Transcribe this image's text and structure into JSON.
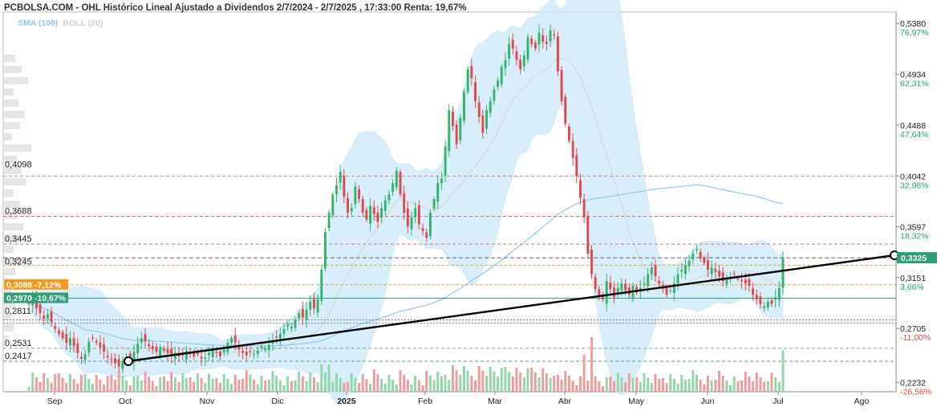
{
  "title": "PCBOLSA.COM - OHL Histórico Lineal Ajustado a Dividendos 2/7/2024 - 2/7/2025 , 17:33:00 Renta: 19,67%",
  "indicators": {
    "sma": "SMA (100)",
    "boll": "BOLL (20)"
  },
  "colors": {
    "up": "#31b36b",
    "down": "#e0474c",
    "band": "#cde9fa",
    "sma": "#8ec9ee",
    "boll_mid": "#d4d4d4",
    "orange_badge": "#f39b1e",
    "green_badge": "#2e9e77",
    "resistance_line": "#d45a5a",
    "trend_line": "#000000"
  },
  "chart_data": {
    "type": "candlestick",
    "title": "PCBOLSA.COM - OHL Histórico Lineal Ajustado a Dividendos 2/7/2024 - 2/7/2025 , 17:33:00 Renta: 19,67%",
    "x_period": [
      "2/7/2024",
      "2/7/2025"
    ],
    "x_tick_labels": [
      "Sep",
      "Oct",
      "Nov",
      "Dic",
      "2025",
      "Feb",
      "Mar",
      "Abr",
      "May",
      "Jun",
      "Jul",
      "Ago"
    ],
    "y_range": [
      0.215,
      0.548
    ],
    "right_axis": [
      {
        "price": "0,5380",
        "pct": "76,97%"
      },
      {
        "price": "0,4934",
        "pct": "62,31%"
      },
      {
        "price": "0,4488",
        "pct": "47,64%"
      },
      {
        "price": "0,4042",
        "pct": "32,98%"
      },
      {
        "price": "0,3597",
        "pct": "18,32%"
      },
      {
        "price": "0,3151",
        "pct": "3,66%"
      },
      {
        "price": "0,2705",
        "pct": "-11,00%"
      },
      {
        "price": "0,2232",
        "pct": "-26,56%"
      }
    ],
    "left_levels": [
      "0,4098",
      "0,3688",
      "0,3445",
      "0,3245",
      "0,2811",
      "0,2531",
      "0,2417"
    ],
    "badges": [
      {
        "text": "0,3088 -7,12%",
        "value": 0.3088,
        "color": "#f39b1e"
      },
      {
        "text": "0,2970 -10,67%",
        "value": 0.297,
        "color": "#2e9e77"
      }
    ],
    "last_price": "0,3325",
    "series": [
      {
        "name": "SMA (100)"
      },
      {
        "name": "BOLL (20)"
      }
    ],
    "close_values": [
      0.292,
      0.296,
      0.288,
      0.284,
      0.279,
      0.283,
      0.276,
      0.27,
      0.266,
      0.262,
      0.258,
      0.262,
      0.255,
      0.249,
      0.244,
      0.248,
      0.259,
      0.262,
      0.258,
      0.254,
      0.25,
      0.245,
      0.243,
      0.24,
      0.237,
      0.242,
      0.246,
      0.244,
      0.25,
      0.257,
      0.262,
      0.259,
      0.255,
      0.252,
      0.25,
      0.254,
      0.251,
      0.249,
      0.246,
      0.249,
      0.246,
      0.247,
      0.251,
      0.248,
      0.246,
      0.248,
      0.244,
      0.245,
      0.249,
      0.251,
      0.249,
      0.246,
      0.252,
      0.258,
      0.262,
      0.258,
      0.252,
      0.249,
      0.247,
      0.25,
      0.248,
      0.251,
      0.255,
      0.253,
      0.256,
      0.26,
      0.263,
      0.266,
      0.27,
      0.274,
      0.272,
      0.278,
      0.284,
      0.28,
      0.287,
      0.294,
      0.288,
      0.296,
      0.322,
      0.355,
      0.372,
      0.388,
      0.396,
      0.408,
      0.386,
      0.372,
      0.376,
      0.395,
      0.384,
      0.372,
      0.366,
      0.378,
      0.371,
      0.364,
      0.376,
      0.383,
      0.388,
      0.398,
      0.409,
      0.388,
      0.372,
      0.36,
      0.368,
      0.376,
      0.362,
      0.356,
      0.35,
      0.372,
      0.384,
      0.398,
      0.402,
      0.43,
      0.462,
      0.448,
      0.432,
      0.455,
      0.478,
      0.498,
      0.49,
      0.47,
      0.456,
      0.442,
      0.462,
      0.47,
      0.48,
      0.488,
      0.5,
      0.506,
      0.52,
      0.516,
      0.506,
      0.498,
      0.51,
      0.526,
      0.52,
      0.516,
      0.53,
      0.522,
      0.52,
      0.532,
      0.528,
      0.496,
      0.47,
      0.45,
      0.435,
      0.42,
      0.404,
      0.385,
      0.368,
      0.336,
      0.318,
      0.305,
      0.298,
      0.296,
      0.312,
      0.305,
      0.298,
      0.306,
      0.31,
      0.304,
      0.3,
      0.308,
      0.302,
      0.306,
      0.31,
      0.318,
      0.324,
      0.316,
      0.31,
      0.305,
      0.3,
      0.304,
      0.31,
      0.318,
      0.322,
      0.326,
      0.33,
      0.336,
      0.34,
      0.332,
      0.328,
      0.322,
      0.324,
      0.32,
      0.316,
      0.312,
      0.314,
      0.316,
      0.318,
      0.314,
      0.312,
      0.31,
      0.308,
      0.3,
      0.296,
      0.292,
      0.29,
      0.294,
      0.292,
      0.298,
      0.306,
      0.3325
    ]
  }
}
